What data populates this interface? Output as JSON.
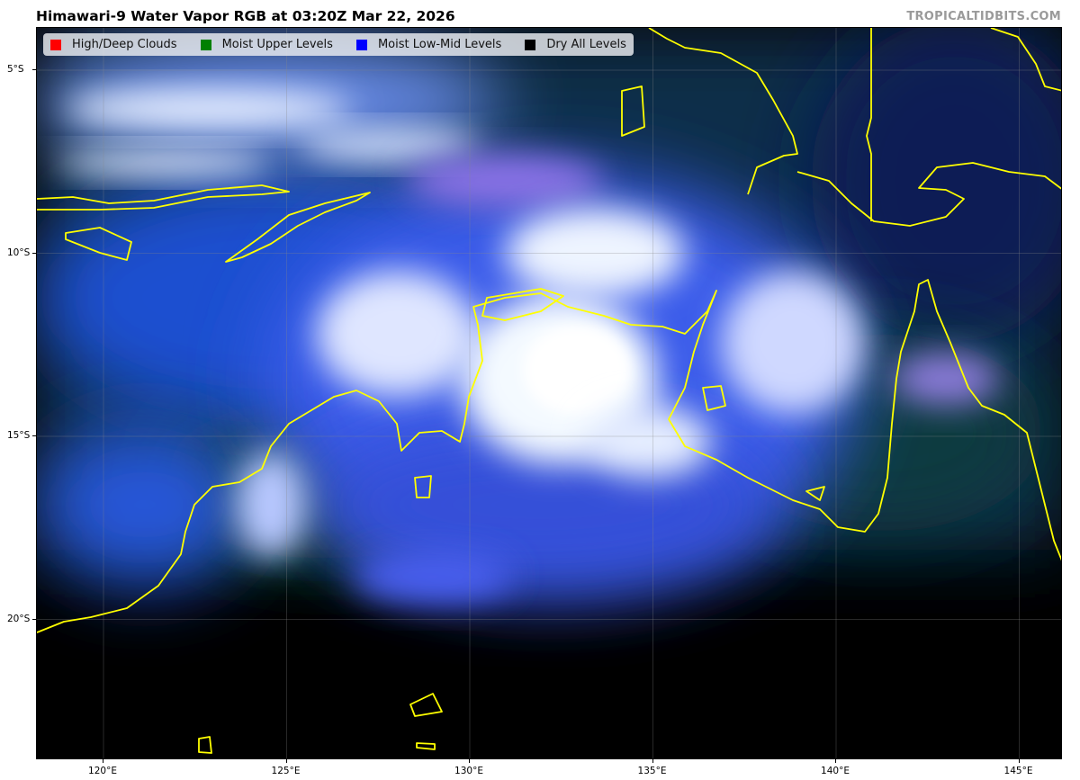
{
  "title": "Himawari-9 Water Vapor RGB at 03:20Z Mar 22, 2026",
  "credit": "TROPICALTIDBITS.COM",
  "legend": [
    {
      "label": "High/Deep Clouds",
      "color": "#ff0000"
    },
    {
      "label": "Moist Upper Levels",
      "color": "#008000"
    },
    {
      "label": "Moist Low-Mid Levels",
      "color": "#0000ff"
    },
    {
      "label": "Dry All Levels",
      "color": "#000000"
    }
  ],
  "map": {
    "coastline_color": "#ffff00",
    "gridline_color": "#888888",
    "lon_ticks": [
      {
        "value": 120,
        "label": "120°E"
      },
      {
        "value": 125,
        "label": "125°E"
      },
      {
        "value": 130,
        "label": "130°E"
      },
      {
        "value": 135,
        "label": "135°E"
      },
      {
        "value": 140,
        "label": "140°E"
      },
      {
        "value": 145,
        "label": "145°E"
      }
    ],
    "lat_ticks": [
      {
        "value": -5,
        "label": "5°S"
      },
      {
        "value": -10,
        "label": "10°S"
      },
      {
        "value": -15,
        "label": "15°S"
      },
      {
        "value": -20,
        "label": "20°S"
      }
    ]
  }
}
